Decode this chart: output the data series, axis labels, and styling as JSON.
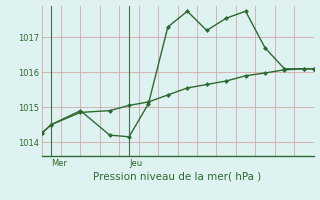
{
  "xlabel": "Pression niveau de la mer( hPa )",
  "background_color": "#dff2f2",
  "plot_bg_color": "#dff2f2",
  "line_color": "#2d6a2d",
  "grid_color_h": "#d4a8a8",
  "grid_color_v": "#d4a8a8",
  "vline_color": "#4a6a4a",
  "yticks": [
    1014,
    1015,
    1016,
    1017
  ],
  "ylim": [
    1013.6,
    1017.9
  ],
  "xlim": [
    0.0,
    14.0
  ],
  "xtick_positions": [
    0.5,
    4.5
  ],
  "xtick_labels": [
    "Mer",
    "Jeu"
  ],
  "series1_x": [
    0,
    0.5,
    2.0,
    3.5,
    4.5,
    5.5,
    6.5,
    7.5,
    8.5,
    9.5,
    10.5,
    11.5,
    12.5,
    13.5,
    14.0
  ],
  "series1_y": [
    1014.25,
    1014.5,
    1014.9,
    1014.2,
    1014.15,
    1015.1,
    1017.3,
    1017.75,
    1017.2,
    1017.55,
    1017.75,
    1016.7,
    1016.1,
    1016.1,
    1016.1
  ],
  "series2_x": [
    0,
    0.5,
    2.0,
    3.5,
    4.5,
    5.5,
    6.5,
    7.5,
    8.5,
    9.5,
    10.5,
    11.5,
    12.5,
    13.5,
    14.0
  ],
  "series2_y": [
    1014.25,
    1014.5,
    1014.85,
    1014.9,
    1015.05,
    1015.15,
    1015.35,
    1015.55,
    1015.65,
    1015.75,
    1015.9,
    1015.98,
    1016.07,
    1016.1,
    1016.1
  ],
  "vline_x": [
    0.5,
    4.5
  ],
  "marker_size": 2.5,
  "line_width": 1.0,
  "tick_fontsize": 6,
  "xlabel_fontsize": 7.5
}
